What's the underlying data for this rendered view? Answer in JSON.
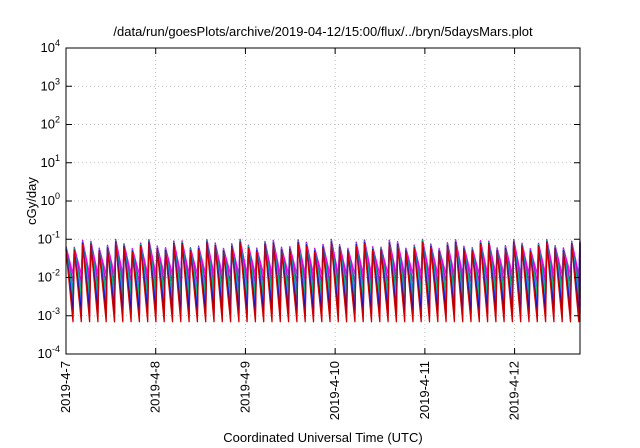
{
  "chart_data": {
    "type": "line",
    "title": "/data/run/goesPlots/archive/2019-04-12/15:00/flux/../bryn/5daysMars.plot",
    "xlabel": "Coordinated Universal Time (UTC)",
    "ylabel": "cGy/day",
    "yscale": "log",
    "ylim": [
      0.0001,
      10000
    ],
    "xlim": [
      "2019-04-07 00:00",
      "2019-04-12 17:30"
    ],
    "grid": true,
    "legend": "none",
    "x_ticks": [
      "2019-4-7",
      "2019-4-8",
      "2019-4-9",
      "2019-4-10",
      "2019-4-11",
      "2019-4-12"
    ],
    "y_ticks": [
      {
        "base": "10",
        "exp": "-4"
      },
      {
        "base": "10",
        "exp": "-3"
      },
      {
        "base": "10",
        "exp": "-2"
      },
      {
        "base": "10",
        "exp": "-1"
      },
      {
        "base": "10",
        "exp": "0"
      },
      {
        "base": "10",
        "exp": "1"
      },
      {
        "base": "10",
        "exp": "2"
      },
      {
        "base": "10",
        "exp": "3"
      },
      {
        "base": "10",
        "exp": "4"
      }
    ],
    "series_colors": [
      "#ff00ff",
      "#cc00cc",
      "#00a0a0",
      "#00cc66",
      "#3050ff",
      "#0000cc",
      "#cc0000"
    ],
    "pattern": {
      "cycles": 62,
      "peak_range": [
        0.05,
        0.1
      ],
      "trough_range": [
        0.0007,
        0.012
      ]
    }
  }
}
